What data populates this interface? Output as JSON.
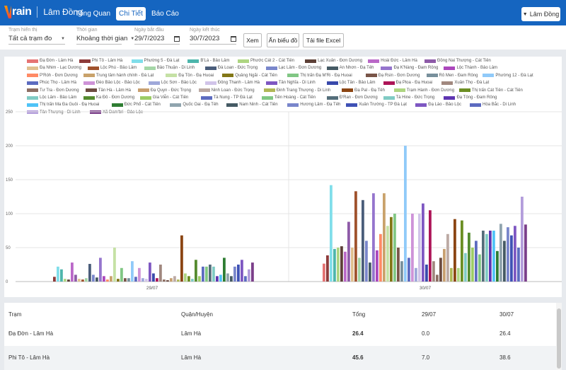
{
  "app": {
    "brand": "rain",
    "region_title": "Lâm Đồng"
  },
  "nav": [
    {
      "label": "Tổng Quan",
      "active": false
    },
    {
      "label": "Chi Tiết",
      "active": true
    },
    {
      "label": "Báo Cáo",
      "active": false
    }
  ],
  "region_select": {
    "label": "Lâm Đồng",
    "icon": "chevron-down-icon"
  },
  "filters": {
    "station": {
      "label": "Trạm hiển thị",
      "value": "Tất cả trạm đo"
    },
    "time": {
      "label": "Thời gian",
      "value": "Khoảng thời gian"
    },
    "start": {
      "label": "Ngày bắt đầu",
      "value": "29/7/2023"
    },
    "end": {
      "label": "Ngày kết thúc",
      "value": "30/7/2023"
    },
    "buttons": {
      "view": "Xem",
      "hide_chart": "Ẩn biểu đồ",
      "export": "Tải file Excel"
    }
  },
  "chart_data": {
    "type": "bar",
    "categories": [
      "29/07",
      "30/07"
    ],
    "ylim": [
      0,
      250
    ],
    "yticks": [
      0,
      50,
      100,
      150,
      200,
      250
    ],
    "grid": true,
    "legend_position": "top",
    "series": [
      {
        "name": "Đạ Đờn - Lâm Hà",
        "color": "#e57373",
        "values": [
          0,
          26.4
        ]
      },
      {
        "name": "Phi Tô - Lâm Hà",
        "color": "#8d3b3b",
        "values": [
          7,
          38.6
        ]
      },
      {
        "name": "Phường 5 - Đà Lạt",
        "color": "#80deea",
        "values": [
          22,
          142
        ]
      },
      {
        "name": "B'Lá - Bảo Lâm",
        "color": "#4db6ac",
        "values": [
          18,
          48
        ]
      },
      {
        "name": "Phước Cát 2 - Cát Tiên",
        "color": "#aed581",
        "values": [
          4,
          50
        ]
      },
      {
        "name": "Lạc Xuân - Đơn Dương",
        "color": "#5d4037",
        "values": [
          3,
          52
        ]
      },
      {
        "name": "Hoài Đức - Lâm Hà",
        "color": "#ba68c8",
        "values": [
          28,
          44
        ]
      },
      {
        "name": "Đồng Nai Thượng - Cát Tiên",
        "color": "#8e5ba8",
        "values": [
          10,
          88
        ]
      },
      {
        "name": "Đạ Nhim - Lạc Dương",
        "color": "#e0c090",
        "values": [
          4,
          50
        ]
      },
      {
        "name": "Lộc Phú - Bảo Lâm",
        "color": "#a0522d",
        "values": [
          3,
          133
        ]
      },
      {
        "name": "Bảo Thuận - Di Linh",
        "color": "#a5d6a7",
        "values": [
          5,
          35
        ]
      },
      {
        "name": "Đà Loan - Đức Trọng",
        "color": "#4a5d7a",
        "values": [
          26,
          120
        ]
      },
      {
        "name": "Lạc Lâm - Đơn Dương",
        "color": "#7986cb",
        "values": [
          10,
          60
        ]
      },
      {
        "name": "An Nhơn - Đạ Tẻh",
        "color": "#455a64",
        "values": [
          6,
          28
        ]
      },
      {
        "name": "Đạ K'Nàng - Đam Rông",
        "color": "#9575cd",
        "values": [
          35,
          130
        ]
      },
      {
        "name": "Lộc Thành - Bảo Lâm",
        "color": "#ab47bc",
        "values": [
          8,
          46
        ]
      },
      {
        "name": "P'Róh - Đơn Dương",
        "color": "#ff8a65",
        "values": [
          3,
          70
        ]
      },
      {
        "name": "Trung tâm hành chính - Đà Lạt",
        "color": "#c9a26b",
        "values": [
          8,
          130
        ]
      },
      {
        "name": "Đạ Tồn - Đạ Huoai",
        "color": "#c5e1a5",
        "values": [
          50,
          82
        ]
      },
      {
        "name": "Quảng Ngãi - Cát Tiên",
        "color": "#827717",
        "values": [
          4,
          95
        ]
      },
      {
        "name": "Thị trấn Đạ M'Ri - Đạ Huoai",
        "color": "#81c784",
        "values": [
          20,
          100
        ]
      },
      {
        "name": "Đạ Rsin - Đơn Dương",
        "color": "#795548",
        "values": [
          5,
          50
        ]
      },
      {
        "name": "Rô Men - Đam Rông",
        "color": "#78909c",
        "values": [
          5,
          30
        ]
      },
      {
        "name": "Phường 12 - Đà Lạt",
        "color": "#90caf9",
        "values": [
          30,
          200
        ]
      },
      {
        "name": "Phúc Thọ - Lâm Hà",
        "color": "#5c6bc0",
        "values": [
          7,
          35
        ]
      },
      {
        "name": "Đèo Bảo Lộc - Bảo Lộc",
        "color": "#ce93d8",
        "values": [
          20,
          100
        ]
      },
      {
        "name": "Lộc Sơn - Bảo Lộc",
        "color": "#9fa8da",
        "values": [
          5,
          20
        ]
      },
      {
        "name": "Đông Thanh - Lâm Hà",
        "color": "#d1c4e9",
        "values": [
          4,
          100
        ]
      },
      {
        "name": "Tân Nghĩa - Di Linh",
        "color": "#7e57c2",
        "values": [
          28,
          115
        ]
      },
      {
        "name": "Lộc Tân - Bảo Lâm",
        "color": "#3949ab",
        "values": [
          12,
          25
        ]
      },
      {
        "name": "Đạ Ploa - Đạ Huoai",
        "color": "#ad1457",
        "values": [
          5,
          105
        ]
      },
      {
        "name": "Xuân Thọ - Đà Lạt",
        "color": "#a1887f",
        "values": [
          25,
          30
        ]
      },
      {
        "name": "Tư Tra - Đơn Dương",
        "color": "#8d6e63",
        "values": [
          3,
          10
        ]
      },
      {
        "name": "Tân Hà - Lâm Hà",
        "color": "#6d4c41",
        "values": [
          2,
          35
        ]
      },
      {
        "name": "Đạ Quyn - Đức Trọng",
        "color": "#c8a070",
        "values": [
          5,
          48
        ]
      },
      {
        "name": "Ninh Loan - Đức Trọng",
        "color": "#bcaaa4",
        "values": [
          8,
          70
        ]
      },
      {
        "name": "Đinh Trang Thượng - Di Linh",
        "color": "#b0b857",
        "values": [
          3,
          20
        ]
      },
      {
        "name": "Đạ Pal - Đạ Tẻh",
        "color": "#8b4513",
        "values": [
          68,
          92
        ]
      },
      {
        "name": "Trạm Hành - Đơn Dương",
        "color": "#aed581",
        "values": [
          12,
          20
        ]
      },
      {
        "name": "Thị trấn Cát Tiên - Cát Tiên",
        "color": "#6b8e23",
        "values": [
          8,
          90
        ]
      },
      {
        "name": "Lộc Lâm - Bảo Lâm",
        "color": "#80cbc4",
        "values": [
          4,
          42
        ]
      },
      {
        "name": "Ka Đô - Đơn Dương",
        "color": "#558b2f",
        "values": [
          32,
          72
        ]
      },
      {
        "name": "Gia Viễn - Cát Tiên",
        "color": "#9ccc65",
        "values": [
          8,
          50
        ]
      },
      {
        "name": "Tà Nung - TP Đà Lạt",
        "color": "#5c6bc0",
        "values": [
          22,
          60
        ]
      },
      {
        "name": "Tiên Hoàng - Cát Tiên",
        "color": "#81c784",
        "values": [
          22,
          40
        ]
      },
      {
        "name": "Đ'Ran - Đơn Dương",
        "color": "#546e7a",
        "values": [
          25,
          75
        ]
      },
      {
        "name": "Tà Hine - Đức Trọng",
        "color": "#80cbc4",
        "values": [
          22,
          70
        ]
      },
      {
        "name": "Đạ Tông - Đam Rông",
        "color": "#5e35b1",
        "values": [
          8,
          75
        ]
      },
      {
        "name": "Thị trấn Ma Đa Guôi - Đạ Huoai",
        "color": "#4fc3f7",
        "values": [
          10,
          75
        ]
      },
      {
        "name": "Đức Phổ - Cát Tiên",
        "color": "#2e7d32",
        "values": [
          35,
          45
        ]
      },
      {
        "name": "Quốc Oai - Đạ Tẻh",
        "color": "#90a4ae",
        "values": [
          12,
          85
        ]
      },
      {
        "name": "Nam Ninh - Cát Tiên",
        "color": "#455a64",
        "values": [
          8,
          60
        ]
      },
      {
        "name": "Hương Lâm - Đạ Tẻh",
        "color": "#7986cb",
        "values": [
          22,
          80
        ]
      },
      {
        "name": "Xuân Trường - TP Đà Lạt",
        "color": "#3f51b5",
        "values": [
          25,
          68
        ]
      },
      {
        "name": "Đạ Lào - Bảo Lộc",
        "color": "#7e57c2",
        "values": [
          32,
          82
        ]
      },
      {
        "name": "Hòa Bắc - Di Linh",
        "color": "#5c6bc0",
        "values": [
          8,
          50
        ]
      },
      {
        "name": "Tân Thượng - Di Linh",
        "color": "#b39ddb",
        "values": [
          18,
          125
        ]
      },
      {
        "name": "Xã Đam'bri - Bảo Lộc",
        "color": "#7b3f8a",
        "values": [
          28,
          84
        ]
      }
    ]
  },
  "table": {
    "headers": {
      "station": "Trạm",
      "district": "Quận/Huyện",
      "total": "Tổng",
      "d1": "29/07",
      "d2": "30/07"
    },
    "rows": [
      {
        "station": "Đạ Đờn - Lâm Hà",
        "district": "Lâm Hà",
        "total": "26.4",
        "d1": "0.0",
        "d2": "26.4"
      },
      {
        "station": "Phi Tô - Lâm Hà",
        "district": "Lâm Hà",
        "total": "45.6",
        "d1": "7.0",
        "d2": "38.6"
      }
    ]
  }
}
